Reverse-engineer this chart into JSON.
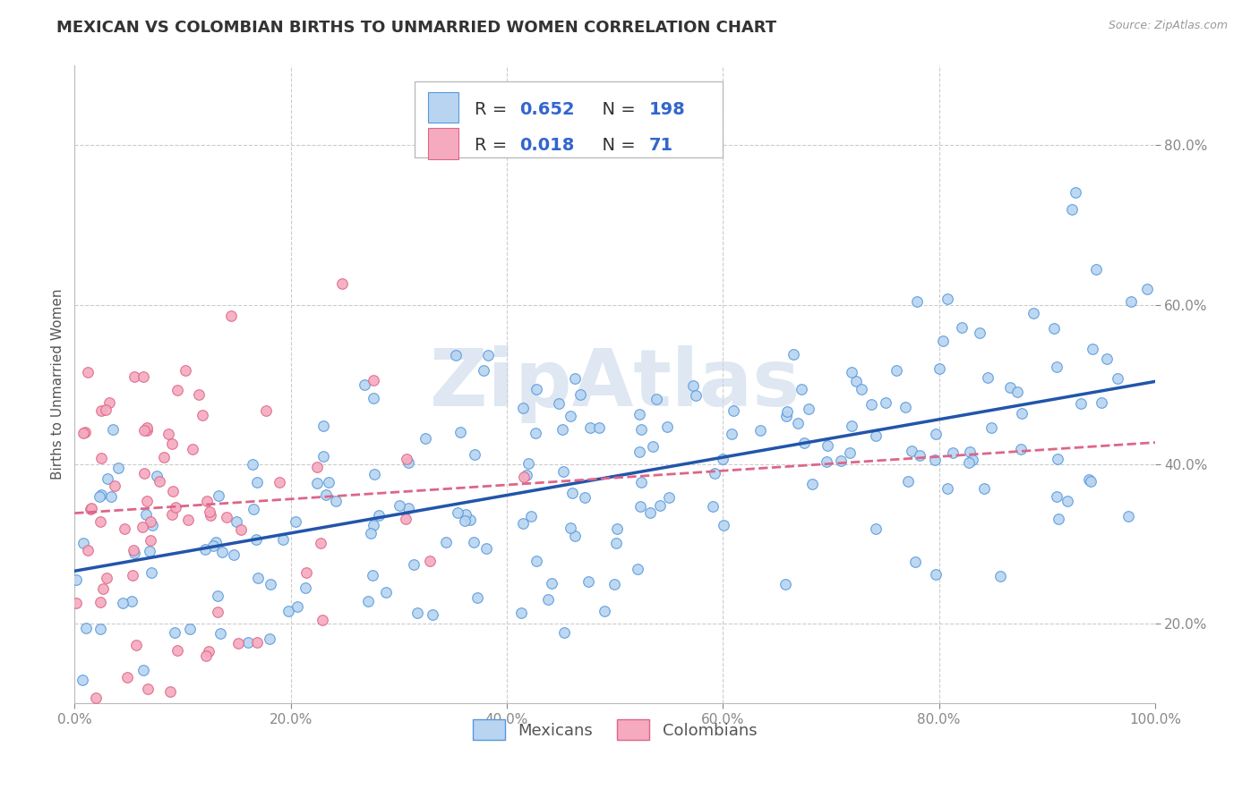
{
  "title": "MEXICAN VS COLOMBIAN BIRTHS TO UNMARRIED WOMEN CORRELATION CHART",
  "source": "Source: ZipAtlas.com",
  "ylabel": "Births to Unmarried Women",
  "xlim": [
    0.0,
    1.0
  ],
  "ylim": [
    0.1,
    0.9
  ],
  "x_ticks": [
    0.0,
    0.2,
    0.4,
    0.6,
    0.8,
    1.0
  ],
  "x_tick_labels": [
    "0.0%",
    "20.0%",
    "40.0%",
    "60.0%",
    "80.0%",
    "100.0%"
  ],
  "y_ticks": [
    0.2,
    0.4,
    0.6,
    0.8
  ],
  "y_tick_labels": [
    "20.0%",
    "40.0%",
    "60.0%",
    "80.0%"
  ],
  "mexican_fill": "#b8d4f0",
  "mexican_edge": "#5599dd",
  "colombian_fill": "#f5aabf",
  "colombian_edge": "#dd6688",
  "mexican_line_color": "#2255aa",
  "colombian_line_color": "#dd6688",
  "watermark_color": "#c8d8ea",
  "R_mexican": 0.652,
  "N_mexican": 198,
  "R_colombian": 0.018,
  "N_colombian": 71,
  "background_color": "#ffffff",
  "grid_color": "#cccccc",
  "title_fontsize": 13,
  "label_fontsize": 11,
  "tick_fontsize": 11,
  "stat_color": "#3366cc",
  "tick_color": "#3366cc"
}
